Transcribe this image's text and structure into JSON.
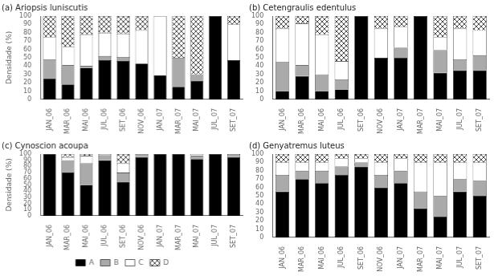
{
  "chart_data": [
    {
      "type": "bar",
      "title": "(a) Ariopsis luniscutis",
      "stacked": true,
      "grid": false,
      "ylabel": "Densidade (%)",
      "categories": [
        "JAN_06",
        "MAR_06",
        "MAI_06",
        "JUL_06",
        "SET_06",
        "NOV_06",
        "JAN_07",
        "MAR_07",
        "MAI_07",
        "JUL_07",
        "SET_07"
      ],
      "series": [
        {
          "name": "A",
          "color": "#000000",
          "values": [
            25,
            18,
            38,
            47,
            46,
            43,
            29,
            15,
            22,
            100,
            47
          ]
        },
        {
          "name": "B",
          "color": "#aaaaaa",
          "values": [
            23,
            23,
            2,
            5,
            5,
            0,
            0,
            35,
            8,
            0,
            0
          ]
        },
        {
          "name": "C",
          "color": "#ffffff",
          "values": [
            27,
            22,
            38,
            28,
            28,
            40,
            71,
            0,
            0,
            0,
            43
          ]
        },
        {
          "name": "D",
          "color": "#ffffff",
          "values": [
            25,
            37,
            22,
            20,
            21,
            17,
            0,
            50,
            70,
            0,
            10
          ]
        }
      ],
      "ylim": [
        0,
        100
      ],
      "yticks": [
        0,
        10,
        20,
        30,
        40,
        50,
        60,
        70,
        80,
        90,
        100
      ]
    },
    {
      "type": "bar",
      "title": "(b) Cetengraulis edentulus",
      "stacked": true,
      "grid": false,
      "categories": [
        "JAN_06",
        "MAR_06",
        "MAI_06",
        "JUL_06",
        "SET_06",
        "NOV_06",
        "JAN_07",
        "MAR_07",
        "MAI_07",
        "JUL_07",
        "SET_07"
      ],
      "series": [
        {
          "name": "A",
          "color": "#000000",
          "values": [
            10,
            28,
            10,
            12,
            100,
            50,
            50,
            100,
            32,
            35,
            35
          ]
        },
        {
          "name": "B",
          "color": "#aaaaaa",
          "values": [
            35,
            13,
            20,
            12,
            0,
            0,
            12,
            0,
            27,
            13,
            18
          ]
        },
        {
          "name": "C",
          "color": "#ffffff",
          "values": [
            40,
            50,
            48,
            22,
            0,
            35,
            25,
            0,
            16,
            37,
            30
          ]
        },
        {
          "name": "D",
          "color": "#ffffff",
          "values": [
            15,
            9,
            22,
            54,
            0,
            15,
            13,
            0,
            25,
            15,
            17
          ]
        }
      ],
      "ylim": [
        0,
        100
      ],
      "yticks": [
        0,
        10,
        20,
        30,
        40,
        50,
        60,
        70,
        80,
        90,
        100
      ]
    },
    {
      "type": "bar",
      "title": "(c) Cynoscion acoupa",
      "stacked": true,
      "grid": false,
      "ylabel": "Densidade (%)",
      "legend": "bottom",
      "categories": [
        "JAN_06",
        "MAR_06",
        "MAI_06",
        "JUL_06",
        "SET_06",
        "NOV_06",
        "JAN_07",
        "MAR_07",
        "MAI_07",
        "JUL_07",
        "SET_07"
      ],
      "series": [
        {
          "name": "A",
          "color": "#000000",
          "values": [
            100,
            70,
            50,
            90,
            55,
            95,
            100,
            100,
            92,
            100,
            95
          ]
        },
        {
          "name": "B",
          "color": "#aaaaaa",
          "values": [
            0,
            20,
            35,
            8,
            15,
            5,
            0,
            0,
            5,
            0,
            5
          ]
        },
        {
          "name": "C",
          "color": "#ffffff",
          "values": [
            0,
            5,
            12,
            2,
            15,
            0,
            0,
            0,
            3,
            0,
            0
          ]
        },
        {
          "name": "D",
          "color": "#ffffff",
          "values": [
            0,
            5,
            3,
            0,
            15,
            0,
            0,
            0,
            0,
            0,
            0
          ]
        }
      ],
      "ylim": [
        0,
        100
      ],
      "yticks": [
        0,
        10,
        20,
        30,
        40,
        50,
        60,
        70,
        80,
        90,
        100
      ]
    },
    {
      "type": "bar",
      "title": "(d) Genyatremus luteus",
      "stacked": true,
      "grid": false,
      "categories": [
        "JAN_06",
        "MAR_06",
        "MAI_06",
        "JUL_06",
        "SET_06",
        "NOV_06",
        "JAN_07",
        "MAR_07",
        "MAI_07",
        "JUL_07",
        "SET_07"
      ],
      "series": [
        {
          "name": "A",
          "color": "#000000",
          "values": [
            55,
            70,
            65,
            75,
            85,
            60,
            65,
            35,
            25,
            55,
            50
          ]
        },
        {
          "name": "B",
          "color": "#aaaaaa",
          "values": [
            20,
            10,
            15,
            10,
            5,
            15,
            15,
            20,
            25,
            15,
            18
          ]
        },
        {
          "name": "C",
          "color": "#ffffff",
          "values": [
            15,
            10,
            10,
            10,
            5,
            15,
            15,
            35,
            40,
            20,
            22
          ]
        },
        {
          "name": "D",
          "color": "#ffffff",
          "values": [
            10,
            10,
            10,
            5,
            5,
            10,
            5,
            10,
            10,
            10,
            10
          ]
        }
      ],
      "ylim": [
        0,
        100
      ],
      "yticks": [
        0,
        10,
        20,
        30,
        40,
        50,
        60,
        70,
        80,
        90,
        100
      ]
    }
  ]
}
